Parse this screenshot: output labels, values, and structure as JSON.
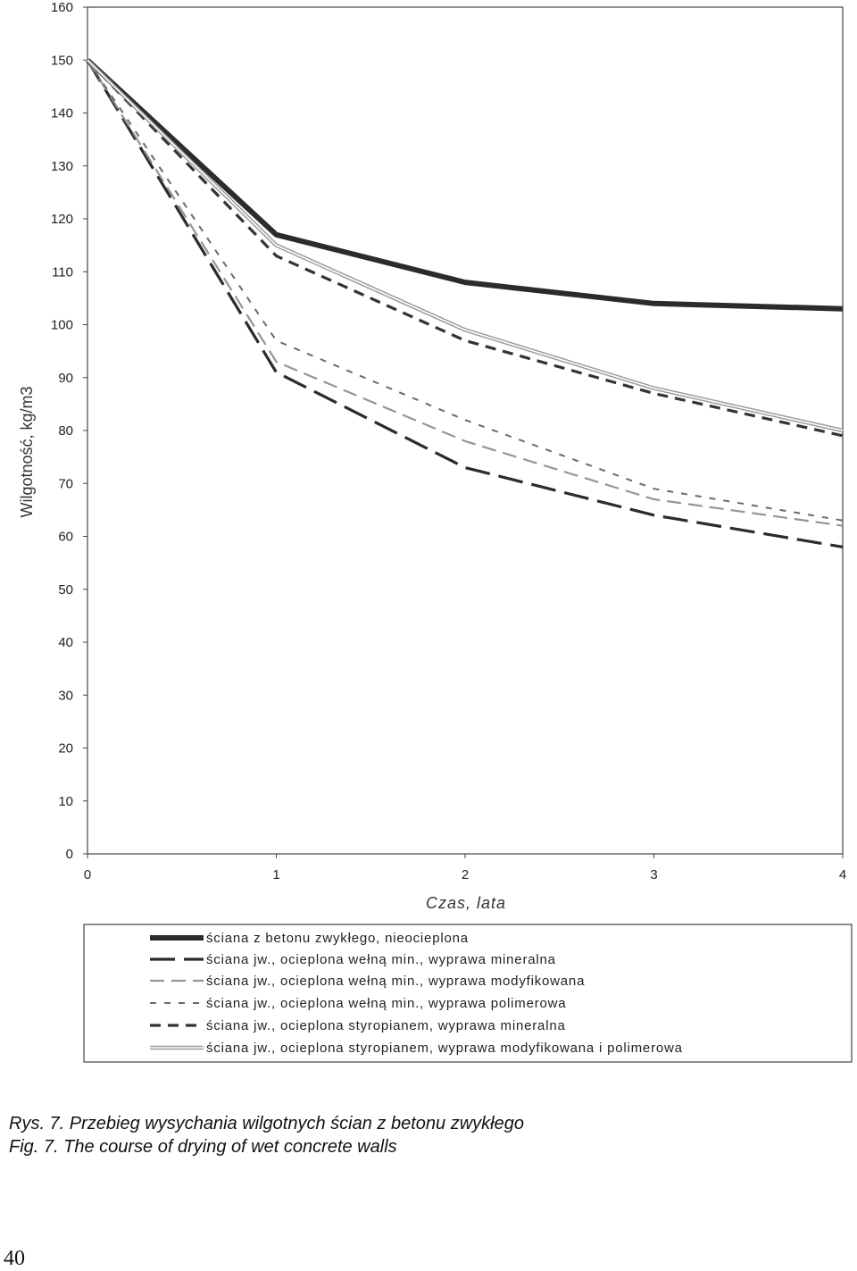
{
  "chart_data": {
    "type": "line",
    "xlabel": "Czas, lata",
    "ylabel": "Wilgotność, kg/m3",
    "xlim": [
      0,
      4
    ],
    "ylim": [
      0,
      160
    ],
    "x_ticks": [
      "0",
      "1",
      "2",
      "3",
      "4"
    ],
    "y_ticks": [
      "0",
      "10",
      "20",
      "30",
      "40",
      "50",
      "60",
      "70",
      "80",
      "90",
      "100",
      "110",
      "120",
      "130",
      "140",
      "150",
      "160"
    ],
    "grid": false,
    "legend_position": "bottom",
    "x": [
      0,
      1,
      2,
      3,
      4
    ],
    "series": [
      {
        "name": "ściana z betonu zwykłego, nieocieplona",
        "style": "thick-solid",
        "color": "#2b2b2b",
        "values": [
          150,
          117,
          108,
          104,
          103
        ]
      },
      {
        "name": "ściana jw., ocieplona wełną min., wyprawa mineralna",
        "style": "long-dash",
        "color": "#2b2b2b",
        "values": [
          150,
          91,
          73,
          64,
          58
        ]
      },
      {
        "name": "ściana jw., ocieplona wełną min., wyprawa modyfikowana",
        "style": "light-dash",
        "color": "#8a8a8a",
        "values": [
          150,
          93,
          78,
          67,
          62
        ]
      },
      {
        "name": "ściana jw., ocieplona wełną min., wyprawa polimerowa",
        "style": "short-dash",
        "color": "#6a6a6a",
        "values": [
          150,
          97,
          82,
          69,
          63
        ]
      },
      {
        "name": "ściana jw., ocieplona styropianem, wyprawa mineralna",
        "style": "medium-dash",
        "color": "#333333",
        "values": [
          150,
          113,
          97,
          87,
          79
        ]
      },
      {
        "name": "ściana jw., ocieplona styropianem, wyprawa modyfikowana i polimerowa",
        "style": "double-light",
        "color": "#8a8a8a",
        "values": [
          150,
          115,
          99,
          88,
          80
        ]
      }
    ]
  },
  "caption": {
    "pl": "Rys. 7. Przebieg wysychania wilgotnych ścian z betonu zwykłego",
    "en": "Fig. 7. The course of drying of wet concrete walls"
  },
  "page_number": "40"
}
